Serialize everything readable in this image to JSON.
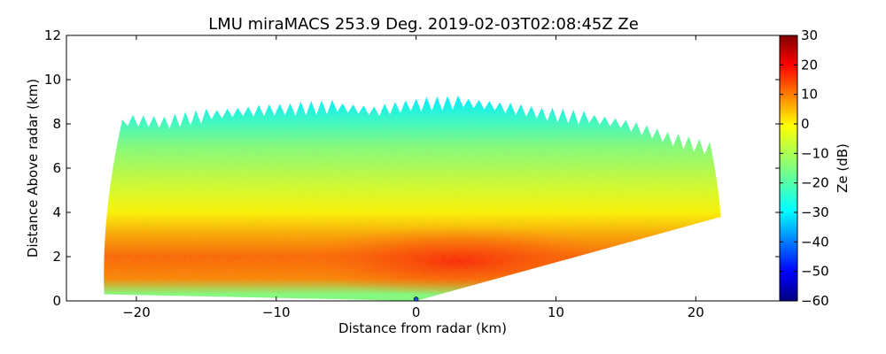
{
  "chart_data": {
    "type": "heatmap",
    "title": "LMU miraMACS 253.9 Deg. 2019-02-03T02:08:45Z  Ze",
    "xlabel": "Distance from radar (km)",
    "ylabel": "Distance Above radar  (km)",
    "xlim": [
      -25,
      26
    ],
    "ylim": [
      0,
      12
    ],
    "xticks": [
      -20,
      -10,
      0,
      10,
      20
    ],
    "yticks": [
      0,
      2,
      4,
      6,
      8,
      10,
      12
    ],
    "grid": false,
    "colorbar": {
      "label": "Ze (dB)",
      "range": [
        -60,
        30
      ],
      "ticks": [
        30,
        20,
        10,
        0,
        -10,
        -20,
        -30,
        -40,
        -50,
        -60
      ],
      "colormap": "jet"
    },
    "radar_position_km": [
      0,
      0
    ],
    "scan": {
      "left_edge_top_km": [
        -21,
        8.2
      ],
      "left_edge_bottom_km": [
        -22.3,
        0.3
      ],
      "right_edge_top_km": [
        21,
        6.9
      ],
      "right_edge_bottom_km": [
        21.8,
        3.8
      ],
      "cloud_top_profile_km": [
        [
          -21,
          8.2
        ],
        [
          -18,
          8.1
        ],
        [
          -15,
          8.4
        ],
        [
          -12,
          8.6
        ],
        [
          -9,
          8.7
        ],
        [
          -6,
          8.8
        ],
        [
          -3,
          8.6
        ],
        [
          0,
          8.9
        ],
        [
          3,
          9.0
        ],
        [
          6,
          8.8
        ],
        [
          9,
          8.5
        ],
        [
          12,
          8.3
        ],
        [
          15,
          8.0
        ],
        [
          18,
          7.4
        ],
        [
          21,
          6.9
        ]
      ],
      "reflectivity_profile": [
        {
          "height_km": 0.3,
          "ze_dB": -15
        },
        {
          "height_km": 1.0,
          "ze_dB": 7
        },
        {
          "height_km": 2.0,
          "ze_dB": 10
        },
        {
          "height_km": 3.0,
          "ze_dB": 4
        },
        {
          "height_km": 4.0,
          "ze_dB": -3
        },
        {
          "height_km": 5.0,
          "ze_dB": -7
        },
        {
          "height_km": 6.0,
          "ze_dB": -11
        },
        {
          "height_km": 7.0,
          "ze_dB": -15
        },
        {
          "height_km": 8.0,
          "ze_dB": -21
        },
        {
          "height_km": 9.0,
          "ze_dB": -27
        }
      ],
      "max_core": {
        "x_km": 3,
        "height_km": 1.8,
        "ze_dB": 16
      }
    }
  }
}
